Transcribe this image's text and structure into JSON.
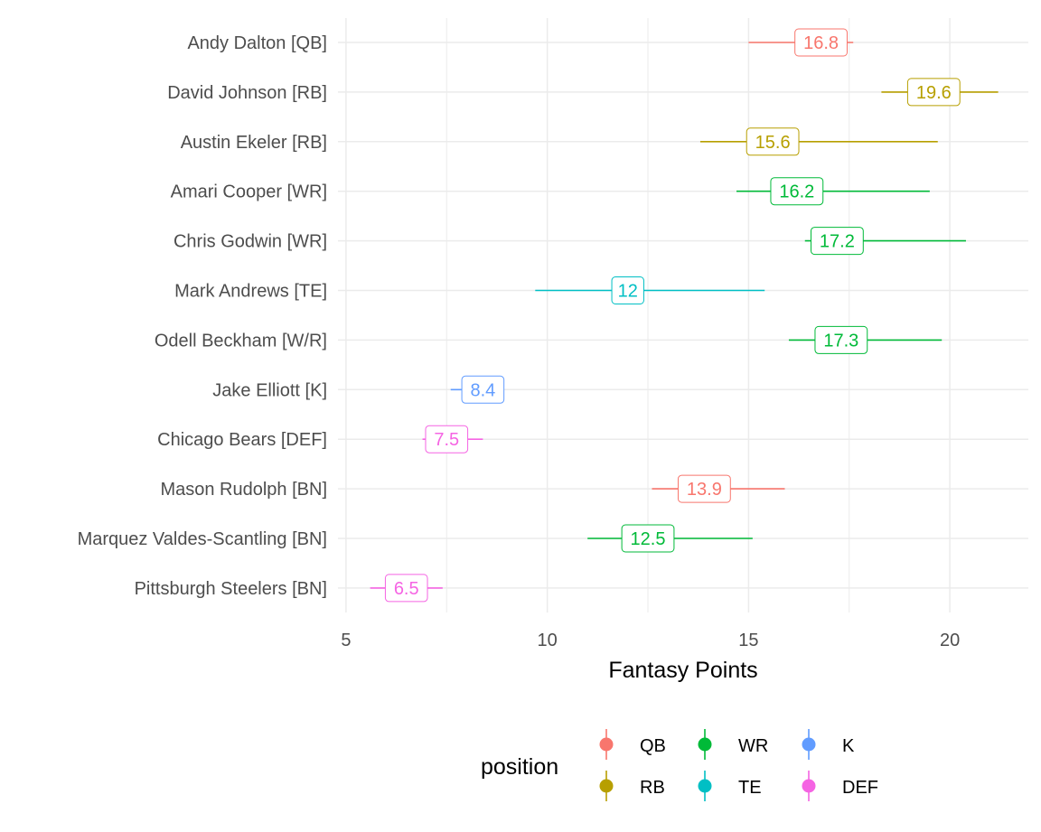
{
  "chart_data": {
    "type": "pointrange-label",
    "xlabel": "Fantasy Points",
    "ylabel": "",
    "xlim": [
      5,
      22
    ],
    "x_ticks": [
      5,
      10,
      15,
      20
    ],
    "grid": true,
    "legend": {
      "title": "position",
      "placement": "bottom",
      "entries": [
        {
          "name": "QB",
          "color": "#F8766D"
        },
        {
          "name": "RB",
          "color": "#B79F00"
        },
        {
          "name": "WR",
          "color": "#00BA38"
        },
        {
          "name": "TE",
          "color": "#00BFC4"
        },
        {
          "name": "K",
          "color": "#619CFF"
        },
        {
          "name": "DEF",
          "color": "#F564E3"
        }
      ]
    },
    "players": [
      {
        "name": "Andy Dalton [QB]",
        "position": "QB",
        "value": 16.8,
        "low": 15.0,
        "high": 17.6,
        "label": "16.8"
      },
      {
        "name": "David Johnson [RB]",
        "position": "RB",
        "value": 19.6,
        "low": 18.3,
        "high": 21.2,
        "label": "19.6"
      },
      {
        "name": "Austin Ekeler [RB]",
        "position": "RB",
        "value": 15.6,
        "low": 13.8,
        "high": 19.7,
        "label": "15.6"
      },
      {
        "name": "Amari Cooper [WR]",
        "position": "WR",
        "value": 16.2,
        "low": 14.7,
        "high": 19.5,
        "label": "16.2"
      },
      {
        "name": "Chris Godwin [WR]",
        "position": "WR",
        "value": 17.2,
        "low": 16.4,
        "high": 20.4,
        "label": "17.2"
      },
      {
        "name": "Mark Andrews [TE]",
        "position": "TE",
        "value": 12,
        "low": 9.7,
        "high": 15.4,
        "label": "12"
      },
      {
        "name": "Odell Beckham [W/R]",
        "position": "WR",
        "value": 17.3,
        "low": 16.0,
        "high": 19.8,
        "label": "17.3"
      },
      {
        "name": "Jake Elliott [K]",
        "position": "K",
        "value": 8.4,
        "low": 7.6,
        "high": 8.9,
        "label": "8.4"
      },
      {
        "name": "Chicago Bears [DEF]",
        "position": "DEF",
        "value": 7.5,
        "low": 6.9,
        "high": 8.4,
        "label": "7.5"
      },
      {
        "name": "Mason Rudolph [BN]",
        "position": "QB",
        "value": 13.9,
        "low": 12.6,
        "high": 15.9,
        "label": "13.9"
      },
      {
        "name": "Marquez Valdes-Scantling [BN]",
        "position": "WR",
        "value": 12.5,
        "low": 11.0,
        "high": 15.1,
        "label": "12.5"
      },
      {
        "name": "Pittsburgh Steelers [BN]",
        "position": "DEF",
        "value": 6.5,
        "low": 5.6,
        "high": 7.4,
        "label": "6.5"
      }
    ]
  }
}
